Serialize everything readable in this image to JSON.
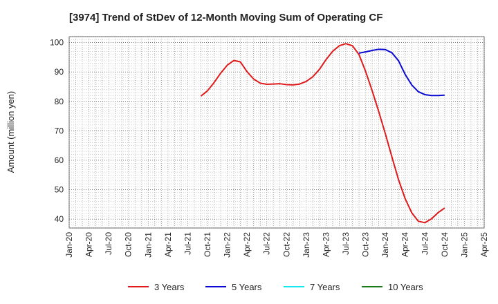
{
  "chart_data": {
    "type": "line",
    "title": "[3974]  Trend of StDev of 12-Month Moving Sum of Operating CF",
    "ylabel": "Amount (million yen)",
    "xlabel": "",
    "ylim": [
      37,
      102
    ],
    "yticks": [
      40,
      50,
      60,
      70,
      80,
      90,
      100
    ],
    "xlim": [
      "2020-01",
      "2025-04"
    ],
    "xtick_labels": [
      "Jan-20",
      "Apr-20",
      "Jul-20",
      "Oct-20",
      "Jan-21",
      "Apr-21",
      "Jul-21",
      "Oct-21",
      "Jan-22",
      "Apr-22",
      "Jul-22",
      "Oct-22",
      "Jan-23",
      "Apr-23",
      "Jul-23",
      "Oct-23",
      "Jan-24",
      "Apr-24",
      "Jul-24",
      "Oct-24",
      "Jan-25",
      "Apr-25"
    ],
    "grid": true,
    "legend_position": "bottom",
    "series": [
      {
        "name": "3 Years",
        "color": "#e0191b",
        "points": [
          [
            "2021-09",
            81.8
          ],
          [
            "2021-10",
            83.6
          ],
          [
            "2021-11",
            86.4
          ],
          [
            "2021-12",
            89.6
          ],
          [
            "2022-01",
            92.3
          ],
          [
            "2022-02",
            93.9
          ],
          [
            "2022-03",
            93.4
          ],
          [
            "2022-04",
            90.1
          ],
          [
            "2022-05",
            87.6
          ],
          [
            "2022-06",
            86.2
          ],
          [
            "2022-07",
            85.8
          ],
          [
            "2022-08",
            85.9
          ],
          [
            "2022-09",
            86.0
          ],
          [
            "2022-10",
            85.7
          ],
          [
            "2022-11",
            85.6
          ],
          [
            "2022-12",
            85.9
          ],
          [
            "2023-01",
            86.8
          ],
          [
            "2023-02",
            88.4
          ],
          [
            "2023-03",
            90.9
          ],
          [
            "2023-04",
            94.2
          ],
          [
            "2023-05",
            97.0
          ],
          [
            "2023-06",
            98.9
          ],
          [
            "2023-07",
            99.6
          ],
          [
            "2023-08",
            98.9
          ],
          [
            "2023-09",
            95.9
          ],
          [
            "2023-10",
            90.2
          ],
          [
            "2023-11",
            83.6
          ],
          [
            "2023-12",
            76.5
          ],
          [
            "2024-01",
            69.0
          ],
          [
            "2024-02",
            61.1
          ],
          [
            "2024-03",
            53.4
          ],
          [
            "2024-04",
            47.0
          ],
          [
            "2024-05",
            42.2
          ],
          [
            "2024-06",
            39.3
          ],
          [
            "2024-07",
            38.8
          ],
          [
            "2024-08",
            40.1
          ],
          [
            "2024-09",
            42.2
          ],
          [
            "2024-10",
            43.8
          ]
        ]
      },
      {
        "name": "5 Years",
        "color": "#0a0ad2",
        "points": [
          [
            "2023-09",
            96.4
          ],
          [
            "2023-10",
            96.8
          ],
          [
            "2023-11",
            97.3
          ],
          [
            "2023-12",
            97.7
          ],
          [
            "2024-01",
            97.6
          ],
          [
            "2024-02",
            96.5
          ],
          [
            "2024-03",
            93.8
          ],
          [
            "2024-04",
            89.2
          ],
          [
            "2024-05",
            85.6
          ],
          [
            "2024-06",
            83.3
          ],
          [
            "2024-07",
            82.3
          ],
          [
            "2024-08",
            82.0
          ],
          [
            "2024-09",
            82.0
          ],
          [
            "2024-10",
            82.1
          ]
        ]
      },
      {
        "name": "7 Years",
        "color": "#19e6ee",
        "points": []
      },
      {
        "name": "10 Years",
        "color": "#1a7a1a",
        "points": []
      }
    ]
  }
}
